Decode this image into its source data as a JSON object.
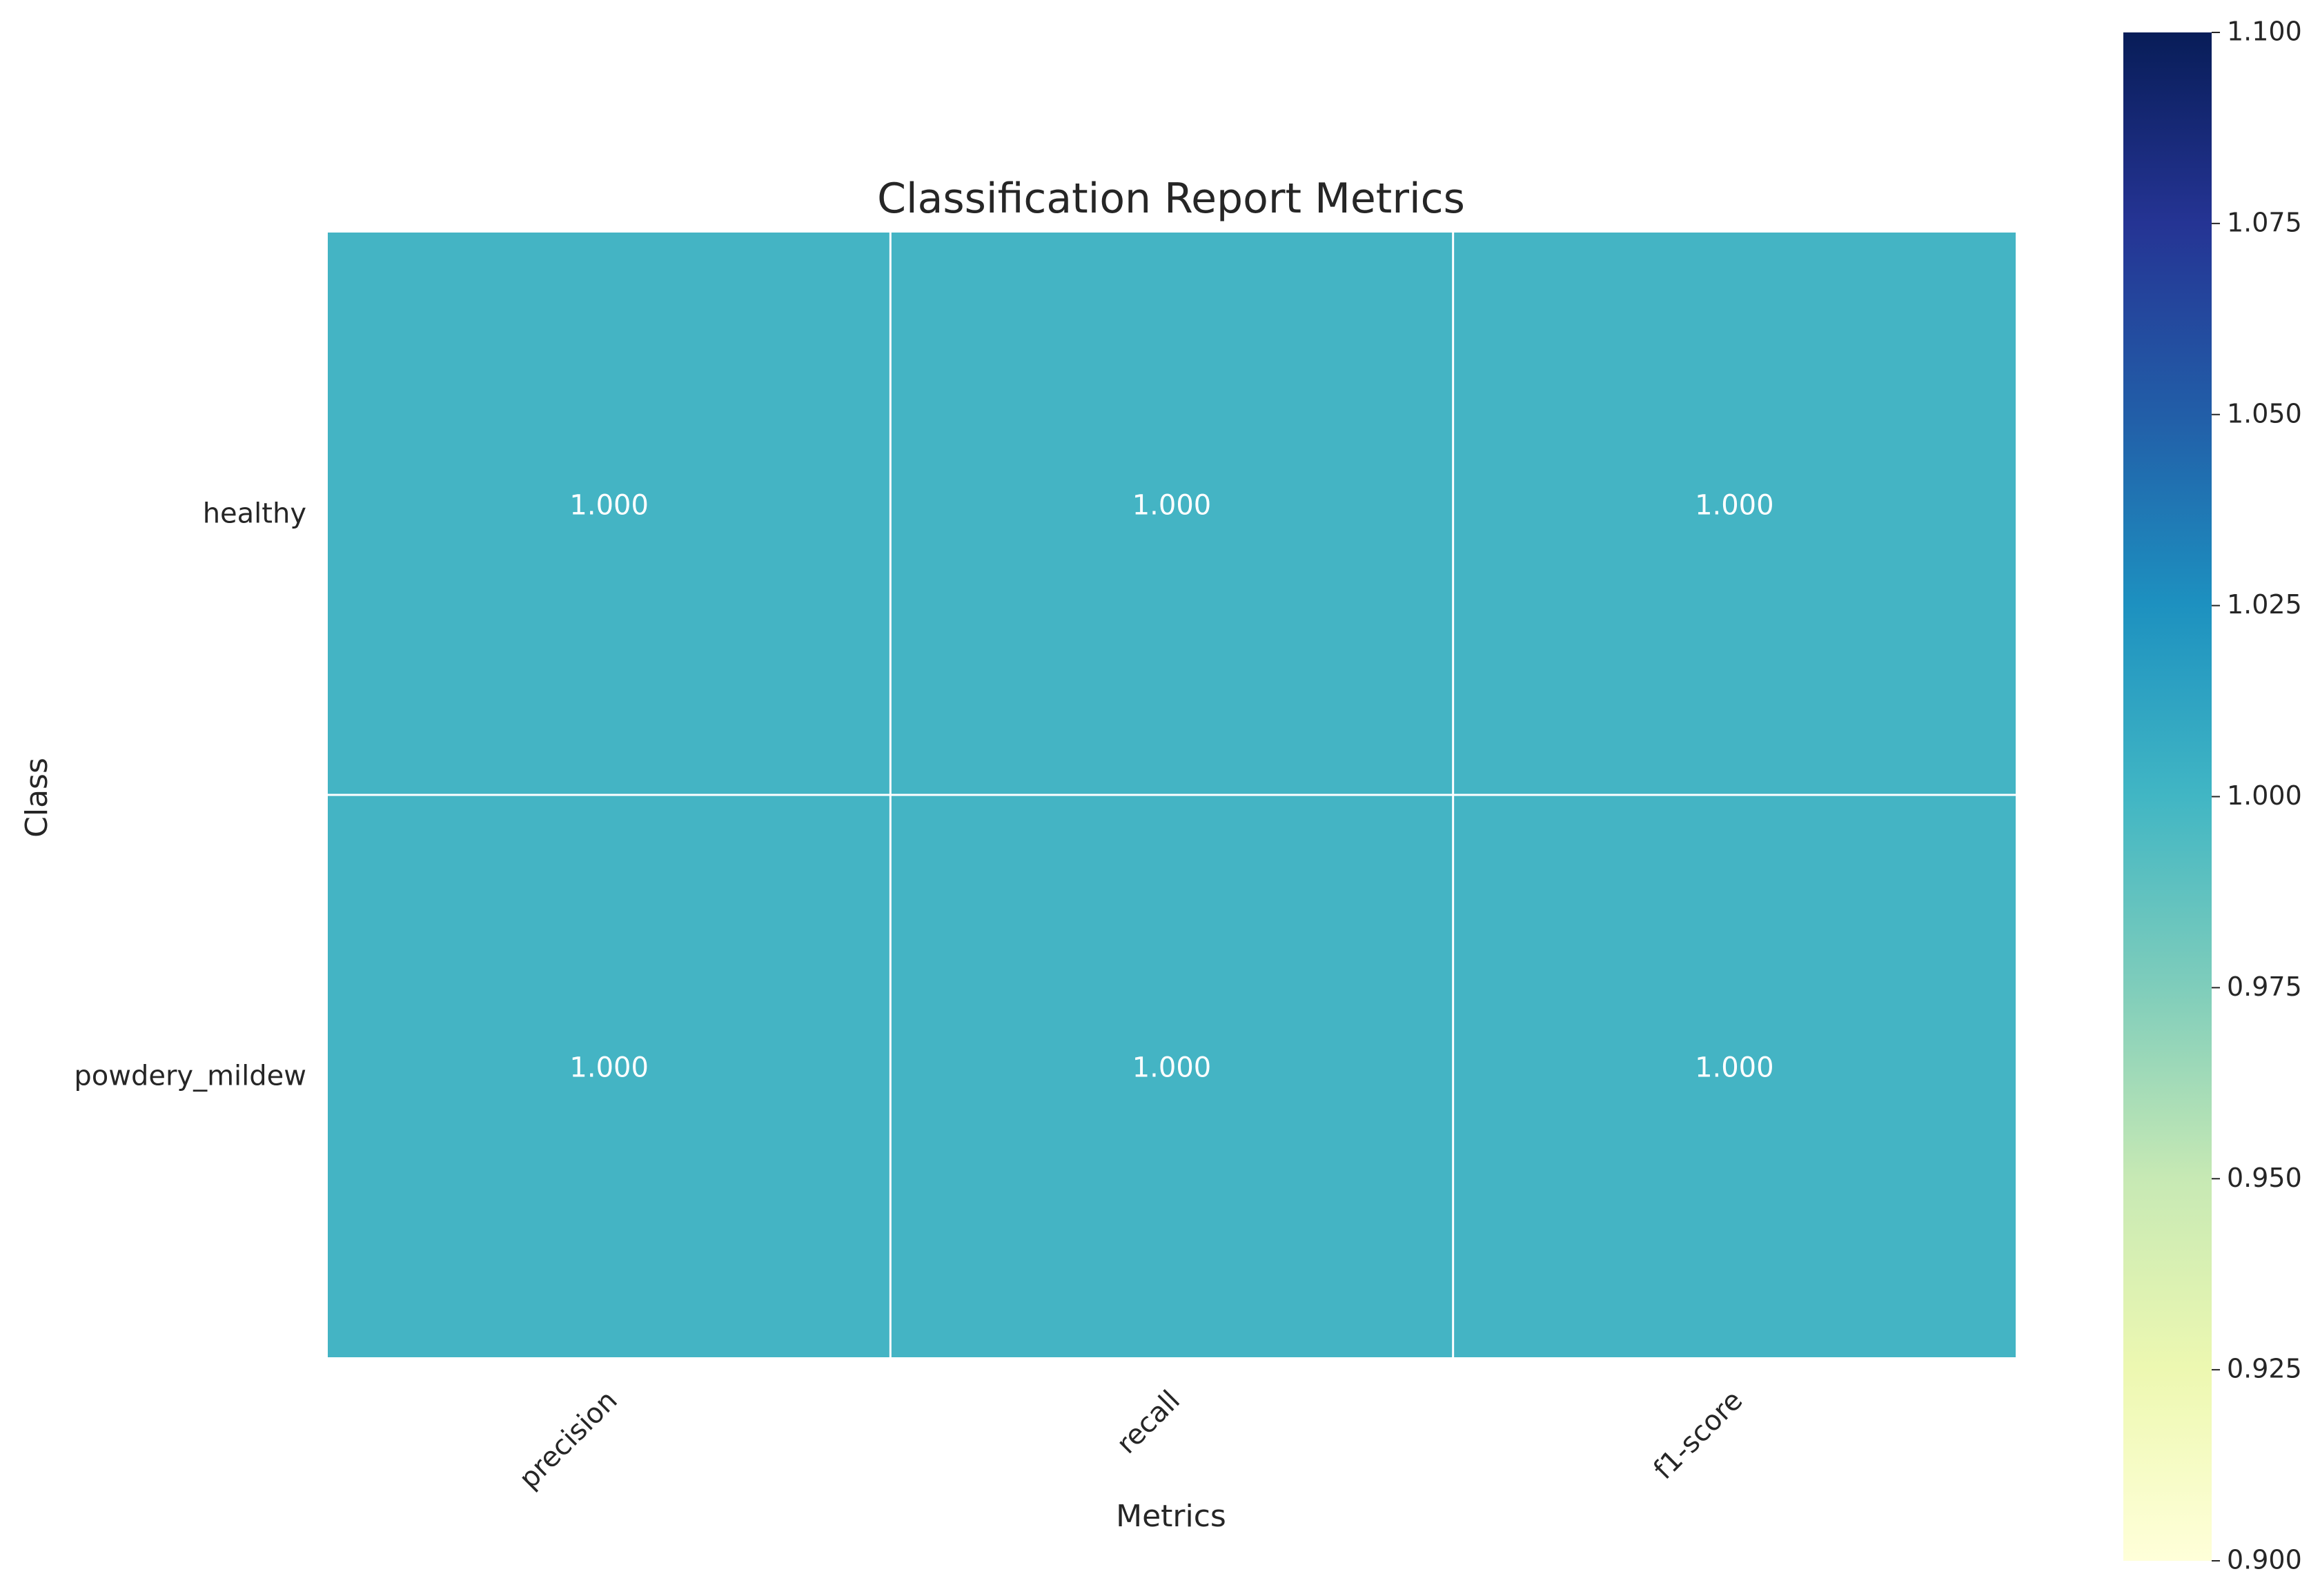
{
  "chart_data": {
    "type": "heatmap",
    "title": "Classification Report Metrics",
    "xlabel": "Metrics",
    "ylabel": "Class",
    "x_categories": [
      "precision",
      "recall",
      "f1-score"
    ],
    "y_categories": [
      "healthy",
      "powdery_mildew"
    ],
    "values": [
      [
        1.0,
        1.0,
        1.0
      ],
      [
        1.0,
        1.0,
        1.0
      ]
    ],
    "value_labels": [
      [
        "1.000",
        "1.000",
        "1.000"
      ],
      [
        "1.000",
        "1.000",
        "1.000"
      ]
    ],
    "colormap": "YlGnBu",
    "colorbar": {
      "min": 0.9,
      "max": 1.1,
      "ticks": [
        "0.900",
        "0.925",
        "0.950",
        "0.975",
        "1.000",
        "1.025",
        "1.050",
        "1.075",
        "1.100"
      ],
      "colors": [
        "#ffffd9",
        "#edf8b1",
        "#c7e9b4",
        "#7fcdbb",
        "#41b6c4",
        "#1d91c0",
        "#225ea8",
        "#253494",
        "#081d58"
      ]
    },
    "cell_color": "#44b4c4",
    "grid_line_color": "#ffffff",
    "annotation_color": "#ffffff"
  }
}
